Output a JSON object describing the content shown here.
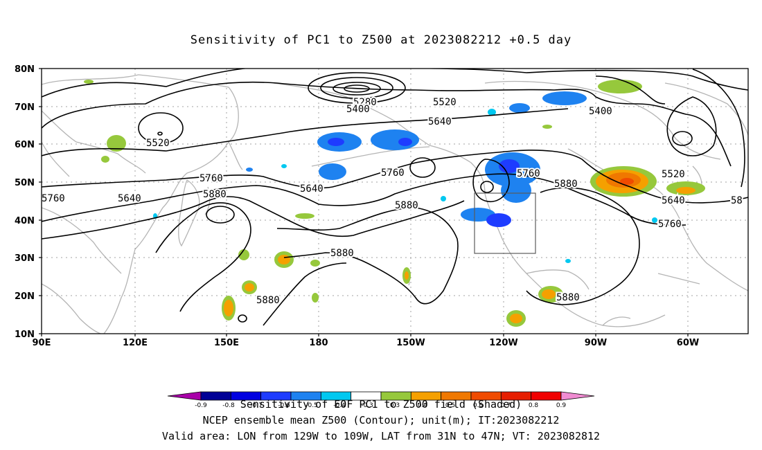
{
  "title": "Sensitivity of PC1 to Z500 at 2023082212 +0.5 day",
  "lat_labels": [
    "80N",
    "70N",
    "60N",
    "50N",
    "40N",
    "30N",
    "20N",
    "10N"
  ],
  "lon_labels": [
    "90E",
    "120E",
    "150E",
    "180",
    "150W",
    "120W",
    "90W",
    "60W"
  ],
  "contour_labels": [
    {
      "text": "5280"
    },
    {
      "text": "5400"
    },
    {
      "text": "5520"
    },
    {
      "text": "5400"
    },
    {
      "text": "5520"
    },
    {
      "text": "5640"
    },
    {
      "text": "5760"
    },
    {
      "text": "5880"
    },
    {
      "text": "5520"
    },
    {
      "text": "5760"
    },
    {
      "text": "5640"
    },
    {
      "text": "5760"
    },
    {
      "text": "5880"
    },
    {
      "text": "5640"
    },
    {
      "text": "5760"
    },
    {
      "text": "5880"
    },
    {
      "text": "5880"
    },
    {
      "text": "5880"
    },
    {
      "text": "5880"
    },
    {
      "text": "5640"
    },
    {
      "text": "5760"
    },
    {
      "text": "58"
    }
  ],
  "colorbar": {
    "colors": [
      "#a800a8",
      "#000096",
      "#0000e0",
      "#1e3cff",
      "#1e82f0",
      "#00c8f0",
      "#ffffff",
      "#96c83c",
      "#f5a000",
      "#f07800",
      "#f04b00",
      "#e61e00",
      "#f00000",
      "#f08cd2"
    ],
    "ticks": [
      "-0.9",
      "-0.8",
      "-0.7",
      "-0.6",
      "-0.5",
      "-0.4",
      "-0.3",
      "0.3",
      "0.4",
      "0.5",
      "0.6",
      "0.7",
      "0.8",
      "0.9"
    ]
  },
  "footer": {
    "line1": "Sensitivity of EOF PC1 to Z500 field (Shaded)",
    "line2": "NCEP ensemble mean Z500 (Contour); unit(m); IT:2023082212",
    "line3": "Valid area: LON from 129W to 109W, LAT from 31N to 47N; VT: 2023082812"
  },
  "colors": {
    "contour": "#000000",
    "coast": "#b4b4b4",
    "grid": "#a0a0a0"
  }
}
